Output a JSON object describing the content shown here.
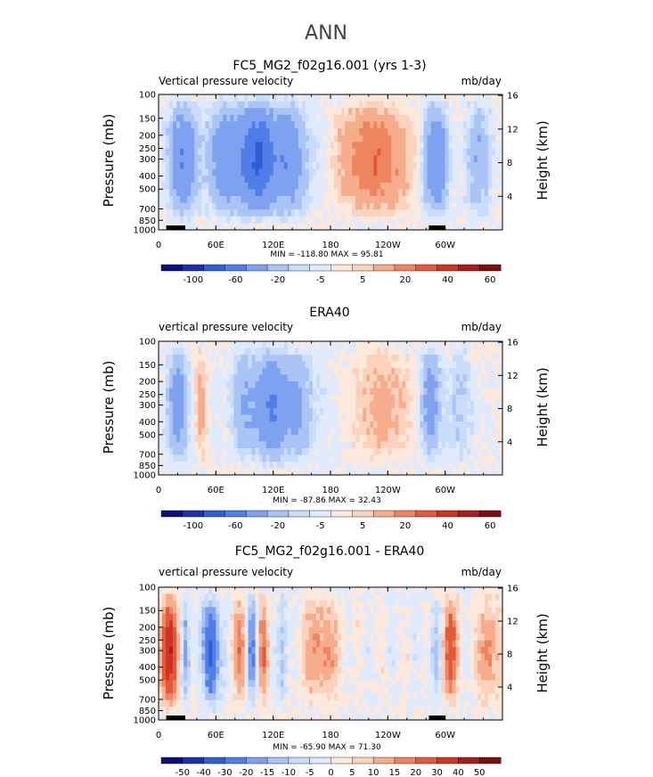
{
  "figure_title": "ANN",
  "chart_data": [
    {
      "type": "heatmap",
      "title": "FC5_MG2_f02g16.001 (yrs 1-3)",
      "left_label": "Vertical pressure velocity",
      "right_label": "mb/day",
      "ylabel": "Pressure (mb)",
      "ylabel_right": "Height (km)",
      "x_ticks": [
        "0",
        "60E",
        "120E",
        "180",
        "120W",
        "60W"
      ],
      "x_tick_lons": [
        0,
        60,
        120,
        180,
        240,
        300
      ],
      "p_ticks": [
        100,
        150,
        200,
        250,
        300,
        400,
        500,
        700,
        850,
        1000
      ],
      "height_ticks": [
        4,
        8,
        12,
        16
      ],
      "stats": "MIN = -118.80  MAX = 95.81",
      "colorbar_labels": [
        "-100",
        "-60",
        "-20",
        "-5",
        "5",
        "20",
        "40",
        "60"
      ],
      "colorbar_colors": [
        "#0b0f7a",
        "#1d2fb0",
        "#2f5fd8",
        "#4f7ee8",
        "#7ea2f0",
        "#a9c4f5",
        "#c9dcfa",
        "#dfeafc",
        "#fde9dc",
        "#fbd2bc",
        "#f6ad8c",
        "#ef8461",
        "#e4593a",
        "#cf3423",
        "#a81c1c",
        "#7a0f0f"
      ],
      "data_range": [
        -118.8,
        95.81
      ]
    },
    {
      "type": "heatmap",
      "title": "ERA40",
      "left_label": "vertical pressure velocity",
      "right_label": "mb/day",
      "ylabel": "Pressure (mb)",
      "ylabel_right": "Height (km)",
      "x_ticks": [
        "0",
        "60E",
        "120E",
        "180",
        "120W",
        "60W"
      ],
      "x_tick_lons": [
        0,
        60,
        120,
        180,
        240,
        300
      ],
      "p_ticks": [
        100,
        150,
        200,
        250,
        300,
        400,
        500,
        700,
        850,
        1000
      ],
      "height_ticks": [
        4,
        8,
        12,
        16
      ],
      "stats": "MIN = -87.86  MAX = 32.43",
      "colorbar_labels": [
        "-100",
        "-60",
        "-20",
        "-5",
        "5",
        "20",
        "40",
        "60"
      ],
      "colorbar_colors": [
        "#0b0f7a",
        "#1d2fb0",
        "#2f5fd8",
        "#4f7ee8",
        "#7ea2f0",
        "#a9c4f5",
        "#c9dcfa",
        "#dfeafc",
        "#fde9dc",
        "#fbd2bc",
        "#f6ad8c",
        "#ef8461",
        "#e4593a",
        "#cf3423",
        "#a81c1c",
        "#7a0f0f"
      ],
      "data_range": [
        -87.86,
        32.43
      ]
    },
    {
      "type": "heatmap",
      "title": "FC5_MG2_f02g16.001 - ERA40",
      "left_label": "vertical pressure velocity",
      "right_label": "mb/day",
      "ylabel": "Pressure (mb)",
      "ylabel_right": "Height (km)",
      "x_ticks": [
        "0",
        "60E",
        "120E",
        "180",
        "120W",
        "60W"
      ],
      "x_tick_lons": [
        0,
        60,
        120,
        180,
        240,
        300
      ],
      "p_ticks": [
        100,
        150,
        200,
        250,
        300,
        400,
        500,
        700,
        850,
        1000
      ],
      "height_ticks": [
        4,
        8,
        12,
        16
      ],
      "stats": "MIN = -65.90  MAX = 71.30",
      "colorbar_labels": [
        "-50",
        "-40",
        "-30",
        "-20",
        "-15",
        "-10",
        "-5",
        "0",
        "5",
        "10",
        "15",
        "20",
        "30",
        "40",
        "50"
      ],
      "colorbar_colors": [
        "#0b0f7a",
        "#1d2fb0",
        "#2f5fd8",
        "#4f7ee8",
        "#7ea2f0",
        "#a9c4f5",
        "#c9dcfa",
        "#dfeafc",
        "#fde9dc",
        "#fbd2bc",
        "#f6ad8c",
        "#ef8461",
        "#e4593a",
        "#cf3423",
        "#a81c1c",
        "#7a0f0f"
      ],
      "data_range": [
        -65.9,
        71.3
      ]
    }
  ]
}
